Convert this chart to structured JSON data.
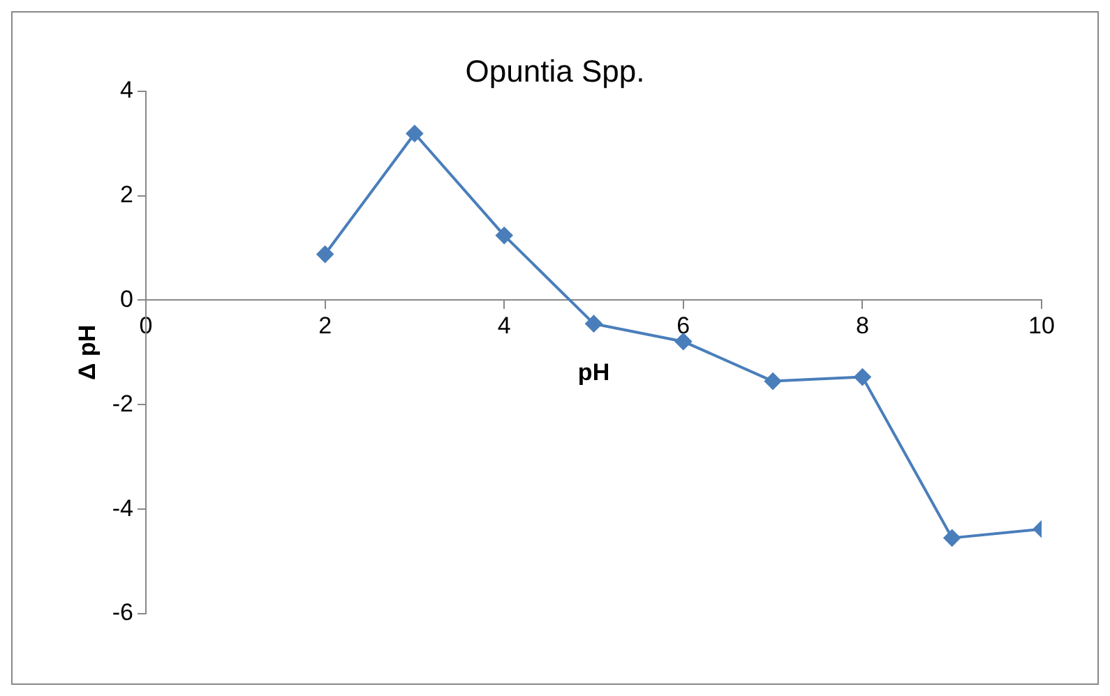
{
  "chart_data": {
    "type": "line",
    "title": "Opuntia Spp.",
    "xlabel": "pH",
    "ylabel": "Δ pH",
    "x": [
      2,
      3,
      4,
      5,
      6,
      7,
      8,
      9,
      10
    ],
    "series": [
      {
        "color": "#4a7ebb",
        "values": [
          0.88,
          3.19,
          1.24,
          -0.45,
          -0.79,
          -1.55,
          -1.47,
          -4.55,
          -4.38
        ]
      }
    ],
    "xlim": [
      0,
      10
    ],
    "xticks": [
      0,
      2,
      4,
      6,
      8,
      10
    ],
    "ylim": [
      -6,
      4
    ],
    "yticks": [
      -6,
      -4,
      -2,
      0,
      2,
      4
    ],
    "grid": false,
    "legend": false,
    "marker": "diamond",
    "line_style": "solid"
  }
}
